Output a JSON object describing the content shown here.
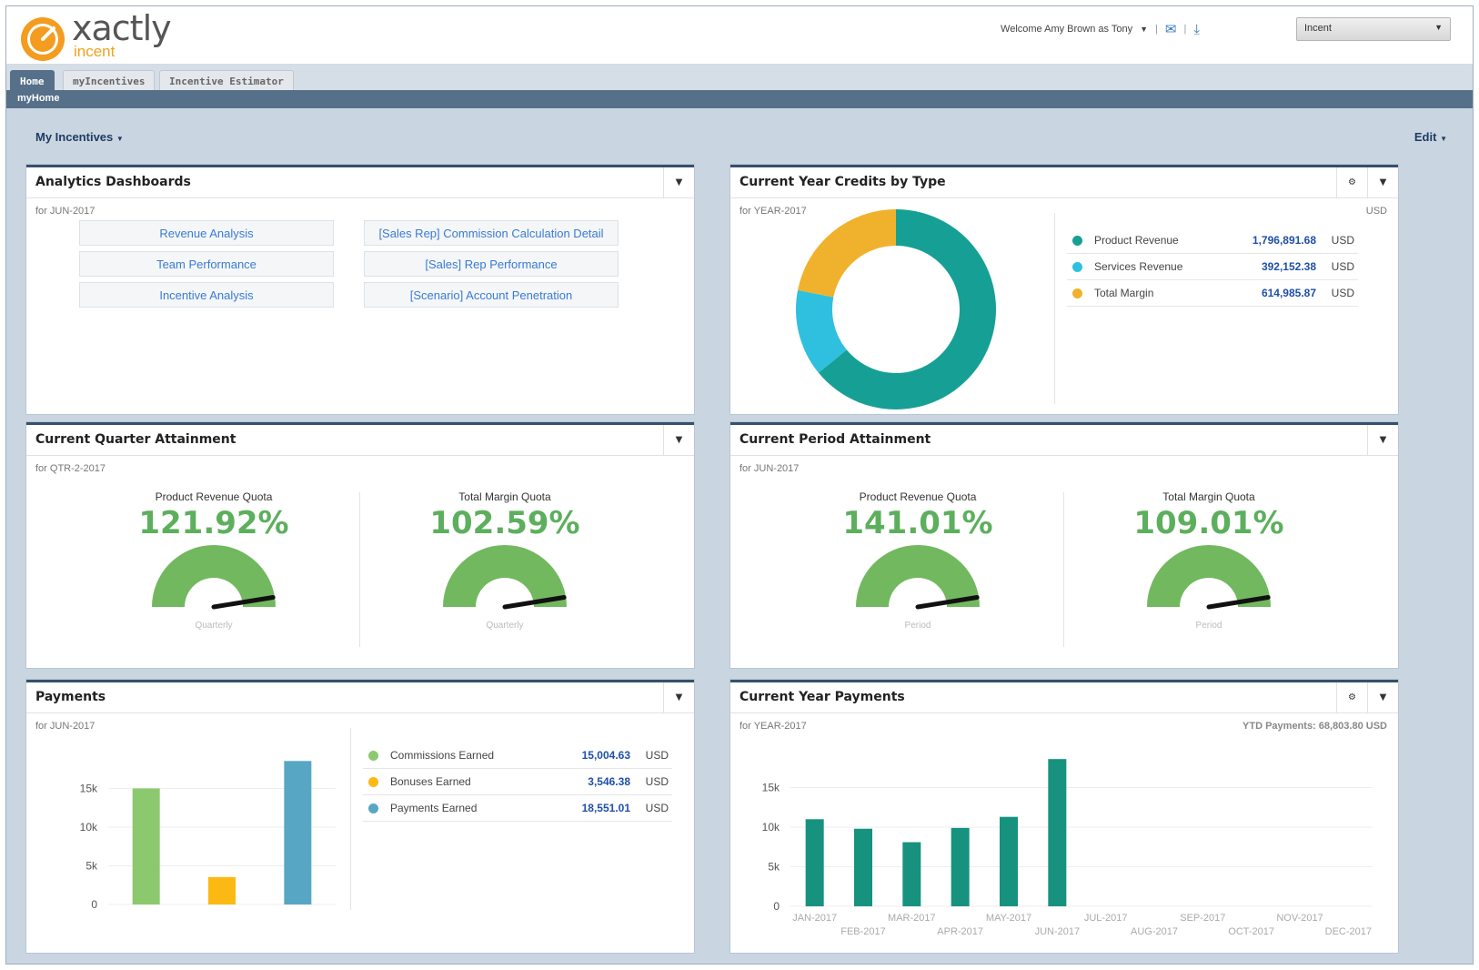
{
  "header": {
    "logo_text": "xactly",
    "logo_sub": "incent",
    "welcome": "Welcome Amy Brown as Tony",
    "role_select": "Incent",
    "icons": [
      "user-caret-icon",
      "mail-icon",
      "download-icon"
    ]
  },
  "tabs": [
    {
      "label": "Home"
    },
    {
      "label": "myIncentives"
    },
    {
      "label": "Incentive Estimator"
    }
  ],
  "subbar": {
    "title": "myHome"
  },
  "menu": {
    "my_incentives": "My Incentives",
    "edit": "Edit"
  },
  "analytics": {
    "title": "Analytics Dashboards",
    "period": "for JUN-2017",
    "links_left": [
      "Revenue Analysis",
      "Team Performance",
      "Incentive Analysis"
    ],
    "links_right": [
      "[Sales Rep] Commission Calculation Detail",
      "[Sales] Rep Performance",
      "[Scenario] Account Penetration"
    ]
  },
  "credits": {
    "title": "Current Year Credits by Type",
    "period": "for YEAR-2017",
    "unit": "USD",
    "rows": [
      {
        "name": "Product Revenue",
        "value": "1,796,891.68",
        "unit": "USD",
        "color": "#16a095"
      },
      {
        "name": "Services Revenue",
        "value": "392,152.38",
        "unit": "USD",
        "color": "#2fc0df"
      },
      {
        "name": "Total Margin",
        "value": "614,985.87",
        "unit": "USD",
        "color": "#f0b12c"
      }
    ]
  },
  "quarter": {
    "title": "Current Quarter Attainment",
    "period": "for QTR-2-2017",
    "gauges": [
      {
        "label": "Product Revenue Quota",
        "value": "121.92%",
        "foot": "Quarterly",
        "fraction": 1.0
      },
      {
        "label": "Total Margin Quota",
        "value": "102.59%",
        "foot": "Quarterly",
        "fraction": 1.0
      }
    ]
  },
  "period": {
    "title": "Current Period Attainment",
    "period": "for JUN-2017",
    "gauges": [
      {
        "label": "Product Revenue Quota",
        "value": "141.01%",
        "foot": "Period",
        "fraction": 1.0
      },
      {
        "label": "Total Margin Quota",
        "value": "109.01%",
        "foot": "Period",
        "fraction": 1.0
      }
    ]
  },
  "payments": {
    "title": "Payments",
    "period": "for JUN-2017",
    "rows": [
      {
        "name": "Commissions Earned",
        "value": "15,004.63",
        "unit": "USD",
        "color": "#8cc96e"
      },
      {
        "name": "Bonuses Earned",
        "value": "3,546.38",
        "unit": "USD",
        "color": "#fdb913"
      },
      {
        "name": "Payments Earned",
        "value": "18,551.01",
        "unit": "USD",
        "color": "#57a6c4"
      }
    ]
  },
  "year_payments": {
    "title": "Current Year Payments",
    "period": "for YEAR-2017",
    "ytd": "YTD Payments: 68,803.80 USD"
  },
  "chart_data": [
    {
      "type": "pie",
      "title": "Current Year Credits by Type",
      "categories": [
        "Product Revenue",
        "Services Revenue",
        "Total Margin"
      ],
      "values": [
        1796891.68,
        392152.38,
        614985.87
      ],
      "colors": [
        "#16a095",
        "#2fc0df",
        "#f0b12c"
      ]
    },
    {
      "type": "bar",
      "title": "Payments",
      "categories": [
        "Commissions Earned",
        "Bonuses Earned",
        "Payments Earned"
      ],
      "values": [
        15004.63,
        3546.38,
        18551.01
      ],
      "colors": [
        "#8cc96e",
        "#fdb913",
        "#57a6c4"
      ],
      "ylim": [
        0,
        20000
      ],
      "yticks": [
        "0",
        "5k",
        "10k",
        "15k"
      ],
      "ytick_values": [
        0,
        5000,
        10000,
        15000
      ]
    },
    {
      "type": "bar",
      "title": "Current Year Payments",
      "categories": [
        "JAN-2017",
        "FEB-2017",
        "MAR-2017",
        "APR-2017",
        "MAY-2017",
        "JUN-2017",
        "JUL-2017",
        "AUG-2017",
        "SEP-2017",
        "OCT-2017",
        "NOV-2017",
        "DEC-2017"
      ],
      "values": [
        11000,
        9800,
        8100,
        9900,
        11300,
        18600,
        0,
        0,
        0,
        0,
        0,
        0
      ],
      "color": "#16927f",
      "ylim": [
        0,
        20000
      ],
      "yticks": [
        "0",
        "5k",
        "10k",
        "15k"
      ],
      "ytick_values": [
        0,
        5000,
        10000,
        15000
      ]
    }
  ]
}
